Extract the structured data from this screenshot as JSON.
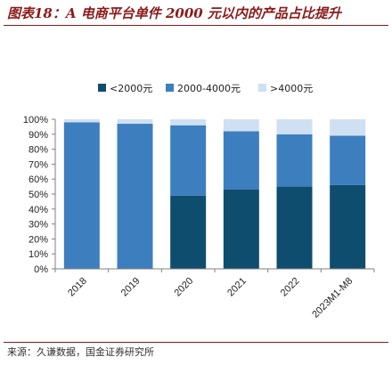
{
  "title": "图表18：A 电商平台单件 2000 元以内的产品占比提升",
  "source": "来源：久谦数据，国金证券研究所",
  "chart_data": {
    "type": "bar",
    "stacked": true,
    "categories": [
      "2018",
      "2019",
      "2020",
      "2021",
      "2022",
      "2023M1-M8"
    ],
    "series": [
      {
        "name": "<2000元",
        "color": "#0f4d6e",
        "values": [
          0,
          0,
          49,
          53,
          55,
          56
        ]
      },
      {
        "name": "2000-4000元",
        "color": "#3d7ebf",
        "values": [
          98,
          97,
          47,
          39,
          35,
          33
        ]
      },
      {
        "name": ">4000元",
        "color": "#cfe0f2",
        "values": [
          2,
          3,
          4,
          8,
          10,
          11
        ]
      }
    ],
    "yticks": [
      "0%",
      "10%",
      "20%",
      "30%",
      "40%",
      "50%",
      "60%",
      "70%",
      "80%",
      "90%",
      "100%"
    ],
    "ylim": [
      0,
      100
    ],
    "legend_position": "top"
  }
}
